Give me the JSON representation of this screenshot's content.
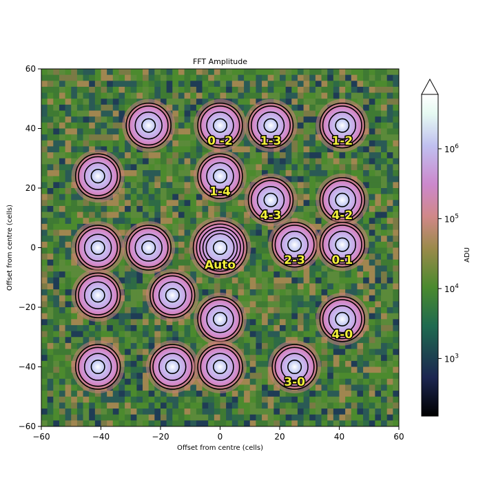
{
  "chart_data": {
    "type": "heatmap",
    "title": "FFT Amplitude",
    "xlabel": "Offset from centre (cells)",
    "ylabel": "Offset from centre (cells)",
    "xlim": [
      -60,
      60
    ],
    "ylim": [
      -60,
      60
    ],
    "xticks": [
      -60,
      -40,
      -20,
      0,
      20,
      40,
      60
    ],
    "yticks": [
      -60,
      -40,
      -20,
      0,
      20,
      40,
      60
    ],
    "xtick_labels": [
      "−60",
      "−40",
      "−20",
      "0",
      "20",
      "40",
      "60"
    ],
    "ytick_labels": [
      "−60",
      "−40",
      "−20",
      "0",
      "20",
      "40",
      "60"
    ],
    "colorbar": {
      "label": "ADU",
      "scale": "log",
      "range": [
        150,
        6000000
      ],
      "extend": "max",
      "ticks": [
        1000,
        10000,
        100000,
        1000000
      ],
      "tick_labels": [
        "10³",
        "10⁴",
        "10⁵",
        "10⁶"
      ],
      "tick_mantissa": "10",
      "tick_exponents": [
        "3",
        "4",
        "5",
        "6"
      ]
    },
    "peaks": [
      {
        "x": 0,
        "y": 0,
        "label": "Auto",
        "amplitude": 5000000
      },
      {
        "x": 0,
        "y": 41,
        "label": "0 -2",
        "amplitude": 1000000
      },
      {
        "x": 17,
        "y": 41,
        "label": "1-3",
        "amplitude": 1000000
      },
      {
        "x": 41,
        "y": 41,
        "label": "1-2",
        "amplitude": 1000000
      },
      {
        "x": 0,
        "y": 24,
        "label": "1-4",
        "amplitude": 1000000
      },
      {
        "x": 17,
        "y": 16,
        "label": "4-3",
        "amplitude": 1000000
      },
      {
        "x": 41,
        "y": 16,
        "label": "4-2",
        "amplitude": 1000000
      },
      {
        "x": 25,
        "y": 1,
        "label": "2-3",
        "amplitude": 1000000
      },
      {
        "x": 41,
        "y": 1,
        "label": "0-1",
        "amplitude": 1000000
      },
      {
        "x": 41,
        "y": -24,
        "label": "4-0",
        "amplitude": 1000000
      },
      {
        "x": 25,
        "y": -40,
        "label": "3-0",
        "amplitude": 1000000
      },
      {
        "x": -24,
        "y": 41,
        "label": "",
        "amplitude": 1000000
      },
      {
        "x": -41,
        "y": 24,
        "label": "",
        "amplitude": 1000000
      },
      {
        "x": -41,
        "y": 0,
        "label": "",
        "amplitude": 1000000
      },
      {
        "x": -24,
        "y": 0,
        "label": "",
        "amplitude": 1000000
      },
      {
        "x": -41,
        "y": -16,
        "label": "",
        "amplitude": 1000000
      },
      {
        "x": -16,
        "y": -16,
        "label": "",
        "amplitude": 1000000
      },
      {
        "x": 0,
        "y": -24,
        "label": "",
        "amplitude": 1000000
      },
      {
        "x": -41,
        "y": -40,
        "label": "",
        "amplitude": 1000000
      },
      {
        "x": -16,
        "y": -40,
        "label": "",
        "amplitude": 1000000
      },
      {
        "x": 0,
        "y": -40,
        "label": "",
        "amplitude": 1000000
      }
    ],
    "contour_levels_adu": [
      50000,
      150000,
      500000,
      2000000
    ],
    "grid": false,
    "colormap": [
      "#000000",
      "#1c2650",
      "#1f6a50",
      "#4a8a2e",
      "#9a8a4a",
      "#d08888",
      "#cc88cc",
      "#c0c0f0",
      "#e6faf2",
      "#ffffff"
    ]
  }
}
